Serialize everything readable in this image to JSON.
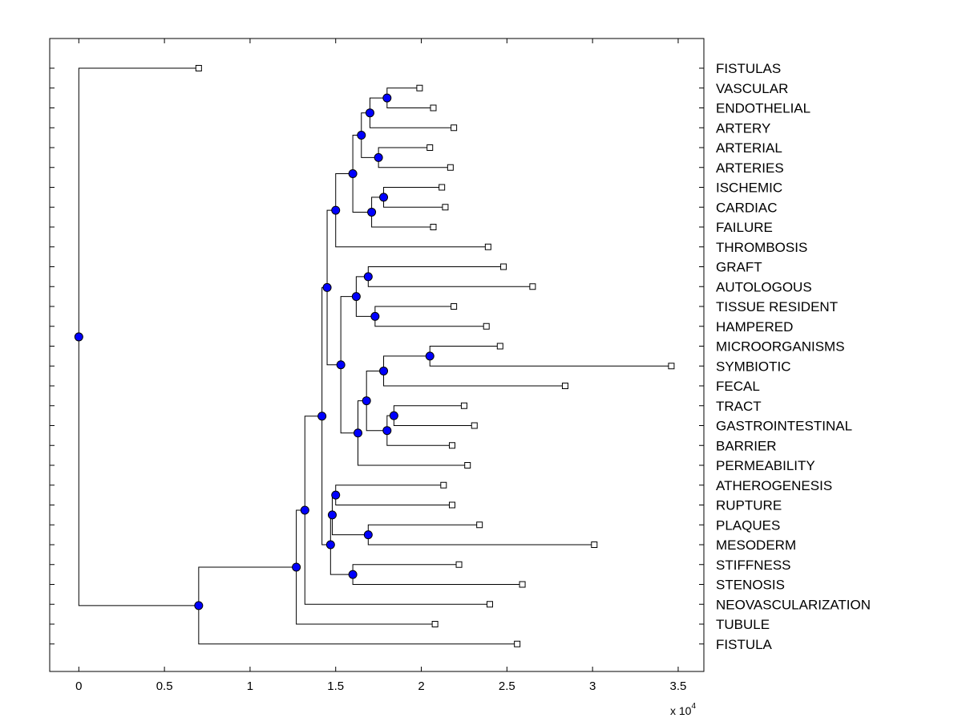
{
  "chart_data": {
    "type": "dendrogram",
    "title": "",
    "xlabel": "",
    "ylabel": "",
    "x_multiplier_text": "x 10",
    "x_multiplier_exponent": "4",
    "xlim": [
      -0.17,
      3.65
    ],
    "xticks": [
      0,
      0.5,
      1,
      1.5,
      2,
      2.5,
      3,
      3.5
    ],
    "xtick_labels": [
      "0",
      "0.5",
      "1",
      "1.5",
      "2",
      "2.5",
      "3",
      "3.5"
    ],
    "leaves": [
      {
        "label": "FISTULAS",
        "x": 0.7
      },
      {
        "label": "VASCULAR",
        "x": 1.99
      },
      {
        "label": "ENDOTHELIAL",
        "x": 2.07
      },
      {
        "label": "ARTERY",
        "x": 2.19
      },
      {
        "label": "ARTERIAL",
        "x": 2.05
      },
      {
        "label": "ARTERIES",
        "x": 2.17
      },
      {
        "label": "ISCHEMIC",
        "x": 2.12
      },
      {
        "label": "CARDIAC",
        "x": 2.14
      },
      {
        "label": "FAILURE",
        "x": 2.07
      },
      {
        "label": "THROMBOSIS",
        "x": 2.39
      },
      {
        "label": "GRAFT",
        "x": 2.48
      },
      {
        "label": "AUTOLOGOUS",
        "x": 2.65
      },
      {
        "label": "TISSUE RESIDENT",
        "x": 2.19
      },
      {
        "label": "HAMPERED",
        "x": 2.38
      },
      {
        "label": "MICROORGANISMS",
        "x": 2.46
      },
      {
        "label": "SYMBIOTIC",
        "x": 3.46
      },
      {
        "label": "FECAL",
        "x": 2.84
      },
      {
        "label": "TRACT",
        "x": 2.25
      },
      {
        "label": "GASTROINTESTINAL",
        "x": 2.31
      },
      {
        "label": "BARRIER",
        "x": 2.18
      },
      {
        "label": "PERMEABILITY",
        "x": 2.27
      },
      {
        "label": "ATHEROGENESIS",
        "x": 2.13
      },
      {
        "label": "RUPTURE",
        "x": 2.18
      },
      {
        "label": "PLAQUES",
        "x": 2.34
      },
      {
        "label": "MESODERM",
        "x": 3.01
      },
      {
        "label": "STIFFNESS",
        "x": 2.22
      },
      {
        "label": "STENOSIS",
        "x": 2.59
      },
      {
        "label": "NEOVASCULARIZATION",
        "x": 2.4
      },
      {
        "label": "TUBULE",
        "x": 2.08
      },
      {
        "label": "FISTULA",
        "x": 2.56
      }
    ],
    "merges": [
      {
        "id": "n1",
        "x": 1.8,
        "left": 1,
        "right": 2
      },
      {
        "id": "n2",
        "x": 1.7,
        "left": "n1",
        "right": 3
      },
      {
        "id": "n3",
        "x": 1.75,
        "left": 4,
        "right": 5
      },
      {
        "id": "n4",
        "x": 1.65,
        "left": "n2",
        "right": "n3"
      },
      {
        "id": "n5",
        "x": 1.78,
        "left": 6,
        "right": 7
      },
      {
        "id": "n6",
        "x": 1.71,
        "left": "n5",
        "right": 8
      },
      {
        "id": "n7",
        "x": 1.6,
        "left": "n4",
        "right": "n6"
      },
      {
        "id": "n8",
        "x": 1.5,
        "left": "n7",
        "right": 9
      },
      {
        "id": "n9",
        "x": 1.69,
        "left": 10,
        "right": 11
      },
      {
        "id": "n10",
        "x": 1.73,
        "left": 12,
        "right": 13
      },
      {
        "id": "n11",
        "x": 1.62,
        "left": "n9",
        "right": "n10"
      },
      {
        "id": "n12",
        "x": 2.05,
        "left": 14,
        "right": 15
      },
      {
        "id": "n13",
        "x": 1.78,
        "left": "n12",
        "right": 16
      },
      {
        "id": "n14",
        "x": 1.84,
        "left": 17,
        "right": 18
      },
      {
        "id": "n15",
        "x": 1.8,
        "left": "n14",
        "right": 19
      },
      {
        "id": "n16",
        "x": 1.68,
        "left": "n13",
        "right": "n15"
      },
      {
        "id": "n17",
        "x": 1.63,
        "left": "n16",
        "right": 20
      },
      {
        "id": "n18",
        "x": 1.53,
        "left": "n11",
        "right": "n17"
      },
      {
        "id": "n19",
        "x": 1.45,
        "left": "n8",
        "right": "n18"
      },
      {
        "id": "n20",
        "x": 1.5,
        "left": 21,
        "right": 22
      },
      {
        "id": "n21",
        "x": 1.69,
        "left": 23,
        "right": 24
      },
      {
        "id": "n22",
        "x": 1.48,
        "left": "n20",
        "right": "n21"
      },
      {
        "id": "n23",
        "x": 1.6,
        "left": 25,
        "right": 26
      },
      {
        "id": "n24",
        "x": 1.47,
        "left": "n22",
        "right": "n23"
      },
      {
        "id": "n25",
        "x": 1.42,
        "left": "n19",
        "right": "n24"
      },
      {
        "id": "n26",
        "x": 1.32,
        "left": "n25",
        "right": 27
      },
      {
        "id": "n27",
        "x": 1.27,
        "left": "n26",
        "right": 28
      },
      {
        "id": "n28",
        "x": 0.7,
        "left": "n27",
        "right": 29
      },
      {
        "id": "n29",
        "x": 0.0,
        "left": 0,
        "right": "n28"
      }
    ],
    "colors": {
      "node_fill": "#0000ff",
      "line": "#000000",
      "leaf_marker_fill": "#ffffff"
    }
  }
}
